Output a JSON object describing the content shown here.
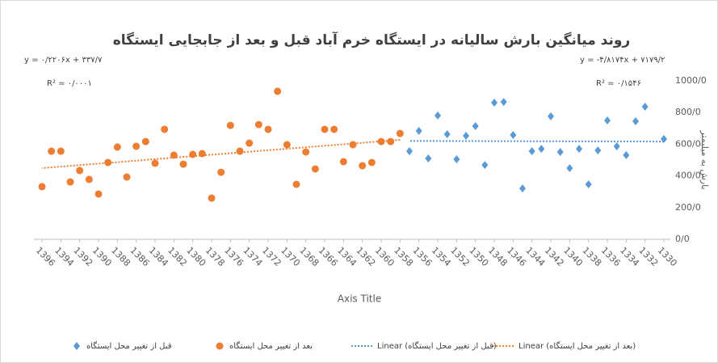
{
  "chart_data": {
    "type": "scatter",
    "title": "روند میانگین بارش سالیانه در ایستگاه خرم آباد قبل و بعد از جابجایی ایستگاه",
    "x_label": "Axis Title",
    "y_label": "بارش به میلیمتر",
    "equations": [
      {
        "equation": "y = -۴/۸۱۷۴x + ۷۱۷۹/۲",
        "r2": "R² = ۰/۱۵۴۶"
      },
      {
        "equation": "y = ۰/۲۲۰۶x + ۳۳۷/۷",
        "r2": "R² = ۰/۰۰۰۱"
      }
    ],
    "xlim": [
      1396,
      1330
    ],
    "xticks": [
      1396,
      1394,
      1392,
      1390,
      1388,
      1386,
      1384,
      1382,
      1380,
      1378,
      1376,
      1374,
      1372,
      1370,
      1368,
      1366,
      1364,
      1362,
      1360,
      1358,
      1356,
      1354,
      1352,
      1350,
      1348,
      1346,
      1344,
      1342,
      1340,
      1338,
      1336,
      1334,
      1332,
      1330
    ],
    "ylim": [
      0,
      1000
    ],
    "yticks": [
      {
        "value": 0,
        "label": "0/0"
      },
      {
        "value": 200,
        "label": "200/0"
      },
      {
        "value": 400,
        "label": "400/0"
      },
      {
        "value": 600,
        "label": "600/0"
      },
      {
        "value": 800,
        "label": "800/0"
      },
      {
        "value": 1000,
        "label": "1000/0"
      }
    ],
    "series": [
      {
        "name": "قبل از تغییر محل ایستگاه",
        "color": "#5b9bd5",
        "marker": "diamond",
        "trendline_label": "Linear (قبل از تغییر محل ایستگاه)",
        "x": [
          1357,
          1356,
          1355,
          1354,
          1353,
          1352,
          1351,
          1350,
          1349,
          1348,
          1347,
          1346,
          1345,
          1344,
          1343,
          1342,
          1341,
          1340,
          1339,
          1338,
          1337,
          1336,
          1335,
          1334,
          1333,
          1332,
          1330
        ],
        "values": [
          556,
          684,
          510,
          781,
          663,
          505,
          653,
          714,
          469,
          862,
          867,
          658,
          321,
          556,
          571,
          776,
          551,
          449,
          571,
          347,
          561,
          750,
          587,
          531,
          745,
          837,
          633
        ]
      },
      {
        "name": "بعد از تغییر محل ایستگاه",
        "color": "#ed7d31",
        "marker": "circle",
        "trendline_label": "Linear (بعد از تغییر محل ایستگاه)",
        "x": [
          1396,
          1395,
          1394,
          1393,
          1392,
          1391,
          1390,
          1389,
          1388,
          1387,
          1386,
          1385,
          1384,
          1383,
          1382,
          1381,
          1380,
          1379,
          1378,
          1377,
          1376,
          1375,
          1374,
          1373,
          1372,
          1371,
          1370,
          1369,
          1368,
          1367,
          1366,
          1365,
          1364,
          1363,
          1362,
          1361,
          1360,
          1359,
          1358
        ],
        "values": [
          332,
          556,
          556,
          362,
          434,
          378,
          286,
          485,
          582,
          393,
          587,
          617,
          480,
          694,
          531,
          474,
          536,
          541,
          260,
          423,
          719,
          556,
          607,
          724,
          694,
          934,
          597,
          347,
          551,
          444,
          694,
          694,
          490,
          597,
          464,
          485,
          617,
          617,
          668
        ]
      }
    ]
  }
}
